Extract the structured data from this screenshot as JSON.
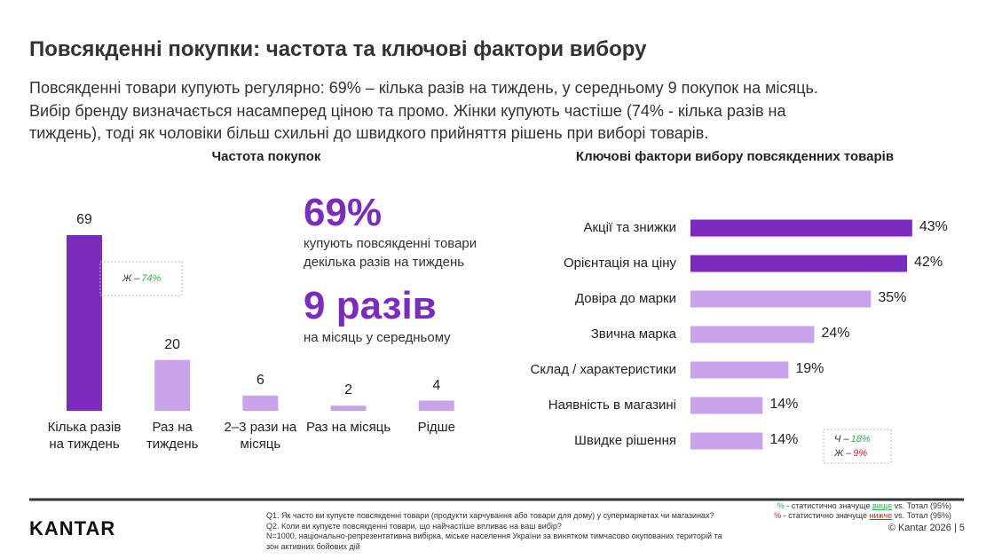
{
  "header": {
    "title": "Повсякденні покупки: частота та ключові фактори вибору",
    "summary": [
      "Повсякденні товари купують регулярно: 69% – кілька разів на тиждень, у середньому 9 покупок на місяць.",
      "Вибір бренду визначається насамперед ціною та промо. Жінки купують частіше (74% - кілька разів на",
      "тиждень), тоді як чоловіки більш схильні до швидкого прийняття рішень при виборі товарів."
    ]
  },
  "highlights": [
    {
      "value": "69%",
      "text": [
        "купують повсякденні товари",
        "декілька разів на тиждень"
      ]
    },
    {
      "value": "9 разів",
      "text": [
        "на місяць у середньому"
      ]
    }
  ],
  "chart_data": [
    {
      "type": "bar",
      "title": "Частота покупок",
      "categories": [
        "Кілька разів на тиждень",
        "Раз на тиждень",
        "2–3 рази на місяць",
        "Раз на місяць",
        "Рідше"
      ],
      "values": [
        69,
        20,
        6,
        2,
        4
      ],
      "colors": [
        "#7b2bbd",
        "#c9a3ea",
        "#c9a3ea",
        "#c9a3ea",
        "#c9a3ea"
      ],
      "annotations": [
        {
          "index": 0,
          "parts": [
            {
              "text": "Ж –",
              "color": "#333333"
            },
            {
              "text": "74%",
              "color": "#2db34a"
            }
          ]
        }
      ]
    },
    {
      "type": "hbar",
      "title": "Ключові фактори вибору повсякденних товарів",
      "categories": [
        "Акції та знижки",
        "Орієнтація на ціну",
        "Довіра до марки",
        "Звична марка",
        "Склад / характеристики",
        "Наявність в магазині",
        "Швидке рішення"
      ],
      "values": [
        43,
        42,
        35,
        24,
        19,
        14,
        14
      ],
      "value_labels": [
        "43%",
        "42%",
        "35%",
        "24%",
        "19%",
        "14%",
        "14%"
      ],
      "colors": [
        "#7b2bbd",
        "#7b2bbd",
        "#c9a3ea",
        "#c9a3ea",
        "#c9a3ea",
        "#c9a3ea",
        "#c9a3ea"
      ],
      "annotations": [
        {
          "index": 6,
          "parts": [
            {
              "text": "Ч –",
              "color": "#333333"
            },
            {
              "text": "18%",
              "color": "#2db34a"
            }
          ]
        },
        {
          "index": 6,
          "parts": [
            {
              "text": "Ж –",
              "color": "#333333"
            },
            {
              "text": "9%",
              "color": "#e0202a"
            }
          ]
        }
      ]
    }
  ],
  "footer": {
    "logo": "KANTAR",
    "notes": [
      "Q1. Як часто ви купуєте повсякденні товари (продукти харчування або товари для дому) у супермаркетах чи магазинах?",
      "Q2. Коли ви купуєте повсякденні товари, що найчастіше впливає на ваш вибір?",
      "N=1000, національно-репрезентативна вибірка, міське населення України за винятком тимчасово окупованих територій та",
      "зон активних бойових дій"
    ],
    "legend": [
      {
        "mark": "%",
        "color": "#2db34a",
        "pre": " - статистично значуще ",
        "word": "вище",
        "post": " vs. Тотал (95%)"
      },
      {
        "mark": "%",
        "color": "#e0202a",
        "pre": " - статистично значуще ",
        "word": "нижче",
        "post": " vs. Тотал (95%)"
      }
    ],
    "copyright": "© Kantar 2026 | 5"
  }
}
